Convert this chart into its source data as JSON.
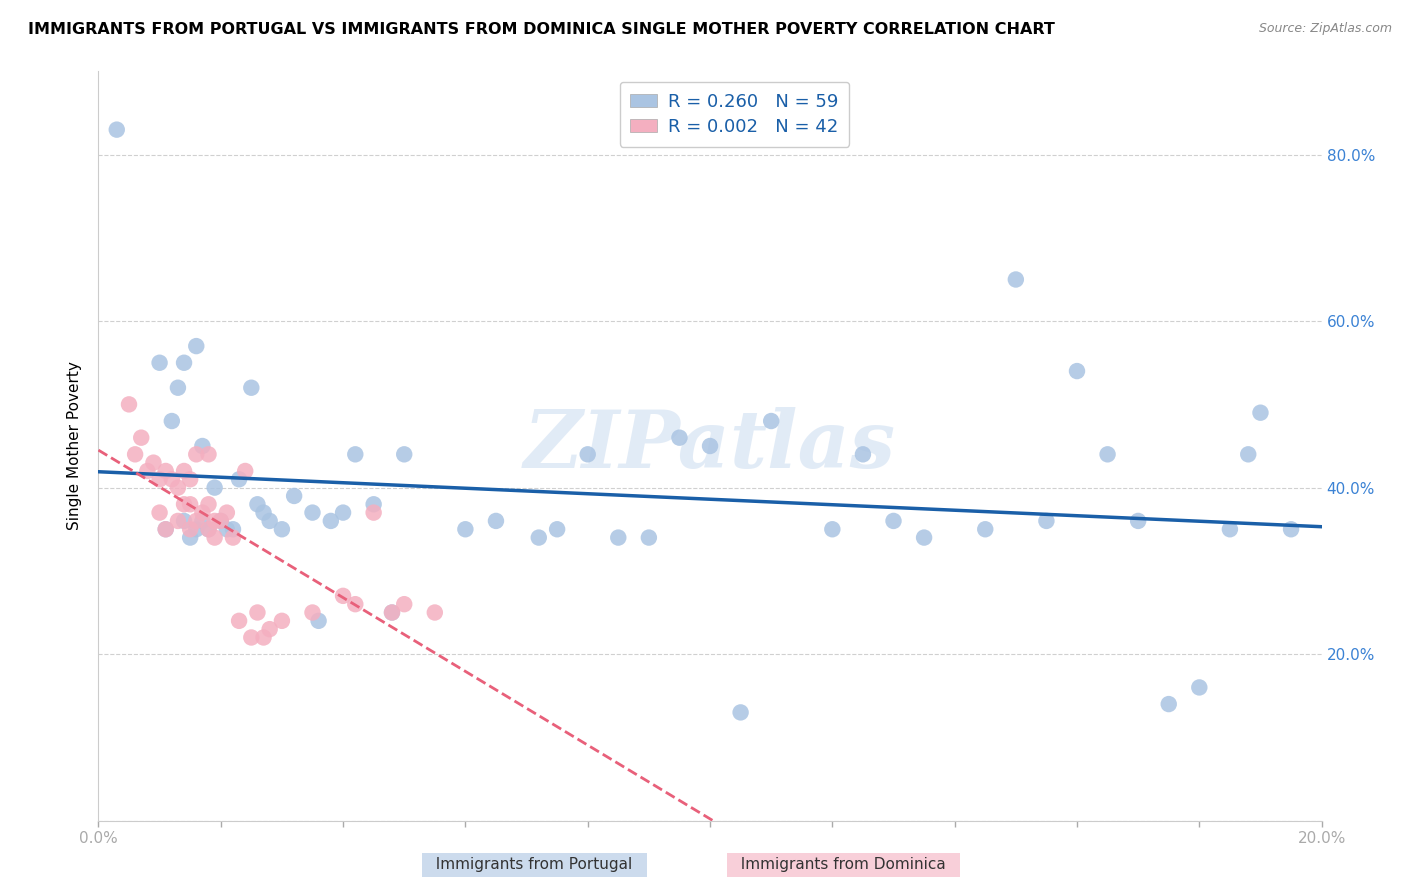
{
  "title": "IMMIGRANTS FROM PORTUGAL VS IMMIGRANTS FROM DOMINICA SINGLE MOTHER POVERTY CORRELATION CHART",
  "source": "Source: ZipAtlas.com",
  "ylabel": "Single Mother Poverty",
  "xlim": [
    0.0,
    0.2
  ],
  "ylim": [
    0.0,
    0.9
  ],
  "color_portugal": "#aac4e2",
  "color_dominica": "#f4afc0",
  "color_portugal_line": "#1a5fa8",
  "color_dominica_line": "#e8607a",
  "color_legend_text": "#1a5fa8",
  "color_righty": "#3b82d4",
  "watermark": "ZIPatlas",
  "background_color": "#ffffff",
  "grid_color": "#d0d0d0",
  "legend_r_portugal": "R = 0.260",
  "legend_n_portugal": "N = 59",
  "legend_r_dominica": "R = 0.002",
  "legend_n_dominica": "N = 42",
  "portugal_x": [
    0.003,
    0.01,
    0.011,
    0.012,
    0.013,
    0.014,
    0.014,
    0.015,
    0.016,
    0.016,
    0.017,
    0.017,
    0.018,
    0.019,
    0.02,
    0.021,
    0.022,
    0.023,
    0.025,
    0.026,
    0.027,
    0.028,
    0.03,
    0.032,
    0.035,
    0.036,
    0.038,
    0.04,
    0.042,
    0.045,
    0.048,
    0.05,
    0.06,
    0.065,
    0.072,
    0.075,
    0.08,
    0.085,
    0.09,
    0.095,
    0.1,
    0.105,
    0.11,
    0.12,
    0.125,
    0.13,
    0.135,
    0.145,
    0.15,
    0.155,
    0.16,
    0.165,
    0.17,
    0.175,
    0.18,
    0.185,
    0.188,
    0.19,
    0.195
  ],
  "portugal_y": [
    0.83,
    0.55,
    0.35,
    0.48,
    0.52,
    0.36,
    0.55,
    0.34,
    0.35,
    0.57,
    0.36,
    0.45,
    0.35,
    0.4,
    0.36,
    0.35,
    0.35,
    0.41,
    0.52,
    0.38,
    0.37,
    0.36,
    0.35,
    0.39,
    0.37,
    0.24,
    0.36,
    0.37,
    0.44,
    0.38,
    0.25,
    0.44,
    0.35,
    0.36,
    0.34,
    0.35,
    0.44,
    0.34,
    0.34,
    0.46,
    0.45,
    0.13,
    0.48,
    0.35,
    0.44,
    0.36,
    0.34,
    0.35,
    0.65,
    0.36,
    0.54,
    0.44,
    0.36,
    0.14,
    0.16,
    0.35,
    0.44,
    0.49,
    0.35
  ],
  "dominica_x": [
    0.005,
    0.006,
    0.007,
    0.008,
    0.009,
    0.01,
    0.01,
    0.011,
    0.011,
    0.012,
    0.013,
    0.013,
    0.014,
    0.014,
    0.015,
    0.015,
    0.015,
    0.016,
    0.016,
    0.017,
    0.018,
    0.018,
    0.018,
    0.019,
    0.019,
    0.02,
    0.021,
    0.022,
    0.023,
    0.024,
    0.025,
    0.026,
    0.027,
    0.028,
    0.03,
    0.035,
    0.04,
    0.042,
    0.045,
    0.048,
    0.05,
    0.055
  ],
  "dominica_y": [
    0.5,
    0.44,
    0.46,
    0.42,
    0.43,
    0.41,
    0.37,
    0.42,
    0.35,
    0.41,
    0.4,
    0.36,
    0.42,
    0.38,
    0.41,
    0.38,
    0.35,
    0.44,
    0.36,
    0.37,
    0.44,
    0.38,
    0.35,
    0.36,
    0.34,
    0.36,
    0.37,
    0.34,
    0.24,
    0.42,
    0.22,
    0.25,
    0.22,
    0.23,
    0.24,
    0.25,
    0.27,
    0.26,
    0.37,
    0.25,
    0.26,
    0.25
  ]
}
